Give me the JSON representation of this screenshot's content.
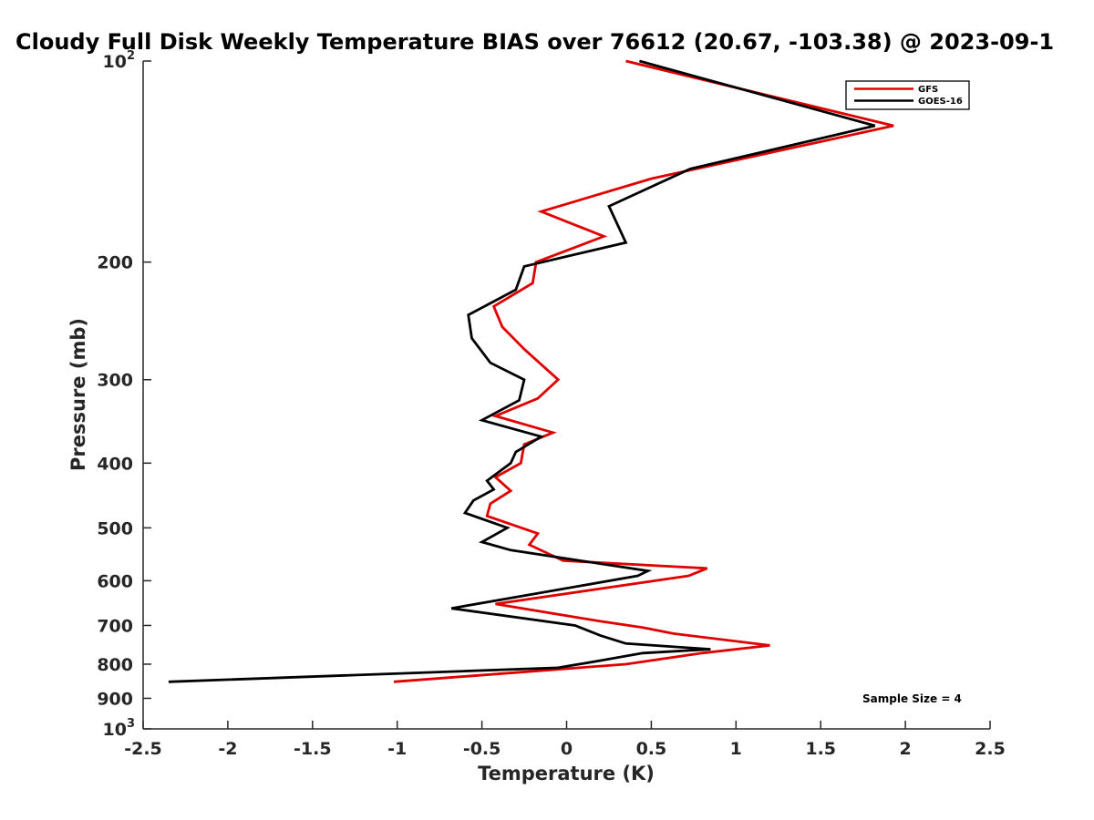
{
  "chart_data": {
    "type": "line",
    "title": "Cloudy Full Disk Weekly Temperature BIAS over 76612 (20.67, -103.38) @ 2023-09-1",
    "xlabel": "Temperature (K)",
    "ylabel": "Pressure (mb)",
    "xlim": [
      -2.5,
      2.5
    ],
    "ylim": [
      100,
      1000
    ],
    "yscale": "log",
    "y_reversed": true,
    "grid": false,
    "legend_position": "top-right",
    "x_ticks": [
      {
        "value": -2.5,
        "label": "-2.5"
      },
      {
        "value": -2,
        "label": "-2"
      },
      {
        "value": -1.5,
        "label": "-1.5"
      },
      {
        "value": -1,
        "label": "-1"
      },
      {
        "value": -0.5,
        "label": "-0.5"
      },
      {
        "value": 0,
        "label": "0"
      },
      {
        "value": 0.5,
        "label": "0.5"
      },
      {
        "value": 1,
        "label": "1"
      },
      {
        "value": 1.5,
        "label": "1.5"
      },
      {
        "value": 2,
        "label": "2"
      },
      {
        "value": 2.5,
        "label": "2.5"
      }
    ],
    "y_ticks": [
      {
        "value": 100,
        "label": "10",
        "sup": "2"
      },
      {
        "value": 200,
        "label": "200",
        "sup": ""
      },
      {
        "value": 300,
        "label": "300",
        "sup": ""
      },
      {
        "value": 400,
        "label": "400",
        "sup": ""
      },
      {
        "value": 500,
        "label": "500",
        "sup": ""
      },
      {
        "value": 600,
        "label": "600",
        "sup": ""
      },
      {
        "value": 700,
        "label": "700",
        "sup": ""
      },
      {
        "value": 800,
        "label": "800",
        "sup": ""
      },
      {
        "value": 900,
        "label": "900",
        "sup": ""
      },
      {
        "value": 1000,
        "label": "10",
        "sup": "3"
      }
    ],
    "annotation": "Sample Size = 4",
    "series": [
      {
        "name": "GFS",
        "color": "#e00000",
        "points": [
          [
            0.35,
            100
          ],
          [
            1.93,
            125
          ],
          [
            0.5,
            150
          ],
          [
            -0.15,
            168
          ],
          [
            0.22,
            183
          ],
          [
            -0.18,
            200
          ],
          [
            -0.2,
            215
          ],
          [
            -0.43,
            233
          ],
          [
            -0.38,
            250
          ],
          [
            -0.25,
            270
          ],
          [
            -0.05,
            300
          ],
          [
            -0.17,
            320
          ],
          [
            -0.42,
            340
          ],
          [
            -0.08,
            360
          ],
          [
            -0.25,
            375
          ],
          [
            -0.27,
            400
          ],
          [
            -0.42,
            420
          ],
          [
            -0.33,
            440
          ],
          [
            -0.45,
            460
          ],
          [
            -0.47,
            480
          ],
          [
            -0.17,
            510
          ],
          [
            -0.22,
            530
          ],
          [
            -0.02,
            560
          ],
          [
            0.83,
            575
          ],
          [
            0.72,
            590
          ],
          [
            -0.42,
            650
          ],
          [
            0.2,
            690
          ],
          [
            0.45,
            705
          ],
          [
            0.63,
            720
          ],
          [
            1.2,
            750
          ],
          [
            0.8,
            770
          ],
          [
            0.35,
            800
          ],
          [
            -1.02,
            850
          ]
        ]
      },
      {
        "name": "GOES-16",
        "color": "#000000",
        "points": [
          [
            0.43,
            100
          ],
          [
            1.82,
            125
          ],
          [
            0.73,
            145
          ],
          [
            0.25,
            165
          ],
          [
            0.35,
            187
          ],
          [
            -0.25,
            203
          ],
          [
            -0.3,
            220
          ],
          [
            -0.58,
            240
          ],
          [
            -0.56,
            260
          ],
          [
            -0.45,
            283
          ],
          [
            -0.25,
            300
          ],
          [
            -0.28,
            322
          ],
          [
            -0.5,
            345
          ],
          [
            -0.15,
            365
          ],
          [
            -0.3,
            385
          ],
          [
            -0.33,
            400
          ],
          [
            -0.47,
            425
          ],
          [
            -0.43,
            438
          ],
          [
            -0.55,
            455
          ],
          [
            -0.6,
            475
          ],
          [
            -0.35,
            500
          ],
          [
            -0.5,
            525
          ],
          [
            -0.33,
            540
          ],
          [
            0.48,
            580
          ],
          [
            0.42,
            590
          ],
          [
            -0.3,
            635
          ],
          [
            -0.68,
            660
          ],
          [
            0.05,
            700
          ],
          [
            0.2,
            725
          ],
          [
            0.35,
            745
          ],
          [
            0.85,
            760
          ],
          [
            0.45,
            770
          ],
          [
            0.2,
            790
          ],
          [
            -0.05,
            810
          ],
          [
            -2.35,
            850
          ]
        ]
      }
    ]
  }
}
